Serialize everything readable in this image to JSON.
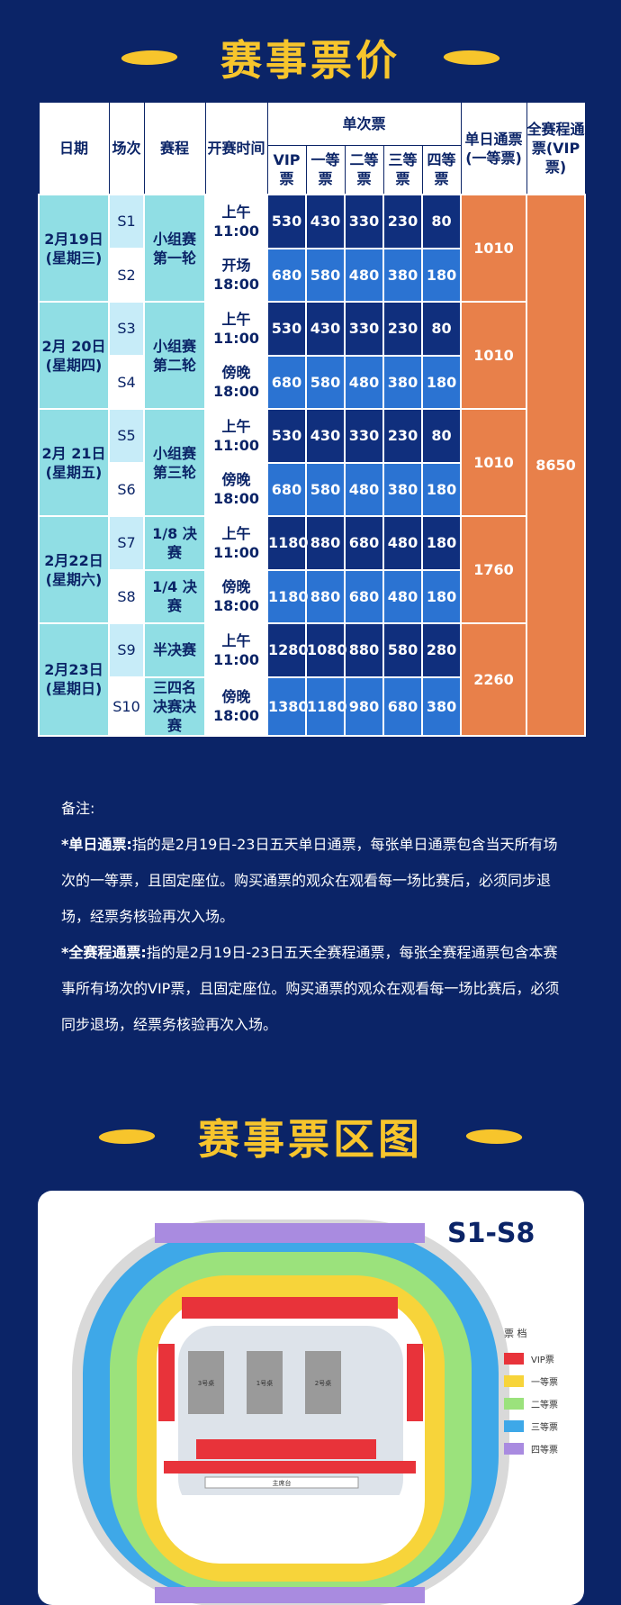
{
  "sections": {
    "price_title": "赛事票价",
    "map_title": "赛事票区图"
  },
  "header": {
    "date": "日期",
    "session": "场次",
    "round": "赛程",
    "time": "开赛时间",
    "single": "单次票",
    "vip": "VIP票",
    "first": "一等票",
    "second": "二等票",
    "third": "三等票",
    "fourth": "四等票",
    "day_pass": "单日通票(一等票)",
    "full_pass": "全赛程通票(VIP票)"
  },
  "days": [
    {
      "date": "2月19日",
      "weekday": "(星期三)",
      "round": "小组赛第一轮",
      "day_pass": "1010",
      "sessions": [
        {
          "id": "S1",
          "time_a": "上午",
          "time_b": "11:00",
          "prices": [
            "530",
            "430",
            "330",
            "230",
            "80"
          ]
        },
        {
          "id": "S2",
          "time_a": "开场",
          "time_b": "18:00",
          "prices": [
            "680",
            "580",
            "480",
            "380",
            "180"
          ]
        }
      ]
    },
    {
      "date": "2月 20日",
      "weekday": "(星期四)",
      "round": "小组赛第二轮",
      "day_pass": "1010",
      "sessions": [
        {
          "id": "S3",
          "time_a": "上午",
          "time_b": "11:00",
          "prices": [
            "530",
            "430",
            "330",
            "230",
            "80"
          ]
        },
        {
          "id": "S4",
          "time_a": "傍晚",
          "time_b": "18:00",
          "prices": [
            "680",
            "580",
            "480",
            "380",
            "180"
          ]
        }
      ]
    },
    {
      "date": "2月 21日",
      "weekday": "(星期五)",
      "round": "小组赛第三轮",
      "day_pass": "1010",
      "sessions": [
        {
          "id": "S5",
          "time_a": "上午",
          "time_b": "11:00",
          "prices": [
            "530",
            "430",
            "330",
            "230",
            "80"
          ]
        },
        {
          "id": "S6",
          "time_a": "傍晚",
          "time_b": "18:00",
          "prices": [
            "680",
            "580",
            "480",
            "380",
            "180"
          ]
        }
      ]
    },
    {
      "date": "2月22日",
      "weekday": "(星期六)",
      "day_pass": "1760",
      "sessions": [
        {
          "id": "S7",
          "round": "1/8 决赛",
          "time_a": "上午",
          "time_b": "11:00",
          "prices": [
            "1180",
            "880",
            "680",
            "480",
            "180"
          ]
        },
        {
          "id": "S8",
          "round": "1/4 决赛",
          "time_a": "傍晚",
          "time_b": "18:00",
          "prices": [
            "1180",
            "880",
            "680",
            "480",
            "180"
          ]
        }
      ]
    },
    {
      "date": "2月23日",
      "weekday": "(星期日)",
      "day_pass": "2260",
      "sessions": [
        {
          "id": "S9",
          "round": "半决赛",
          "time_a": "上午",
          "time_b": "11:00",
          "prices": [
            "1280",
            "1080",
            "880",
            "580",
            "280"
          ]
        },
        {
          "id": "S10",
          "round": "三四名决赛决赛",
          "time_a": "傍晚",
          "time_b": "18:00",
          "prices": [
            "1380",
            "1180",
            "980",
            "680",
            "380"
          ]
        }
      ]
    }
  ],
  "full_pass_price": "8650",
  "notes": {
    "heading": "备注:",
    "day_pass_label": "*单日通票:",
    "day_pass_text": "指的是2月19日-23日五天单日通票，每张单日通票包含当天所有场次的一等票，且固定座位。购买通票的观众在观看每一场比赛后，必须同步退场，经票务核验再次入场。",
    "full_pass_label": "*全赛程通票:",
    "full_pass_text": "指的是2月19日-23日五天全赛程通票，每张全赛程通票包含本赛事所有场次的VIP票，且固定座位。购买通票的观众在观看每一场比赛后，必须同步退场，经票务核验再次入场。"
  },
  "map": {
    "session_label": "S1-S8",
    "legend_title": "票 档",
    "legend": [
      {
        "label": "VIP票",
        "color": "#e8333a"
      },
      {
        "label": "一等票",
        "color": "#f7d43a"
      },
      {
        "label": "二等票",
        "color": "#9be27c"
      },
      {
        "label": "三等票",
        "color": "#3ea8e8"
      },
      {
        "label": "四等票",
        "color": "#a98be0"
      }
    ],
    "tables": [
      "3号桌",
      "1号桌",
      "2号桌"
    ],
    "stage": "主席台"
  }
}
